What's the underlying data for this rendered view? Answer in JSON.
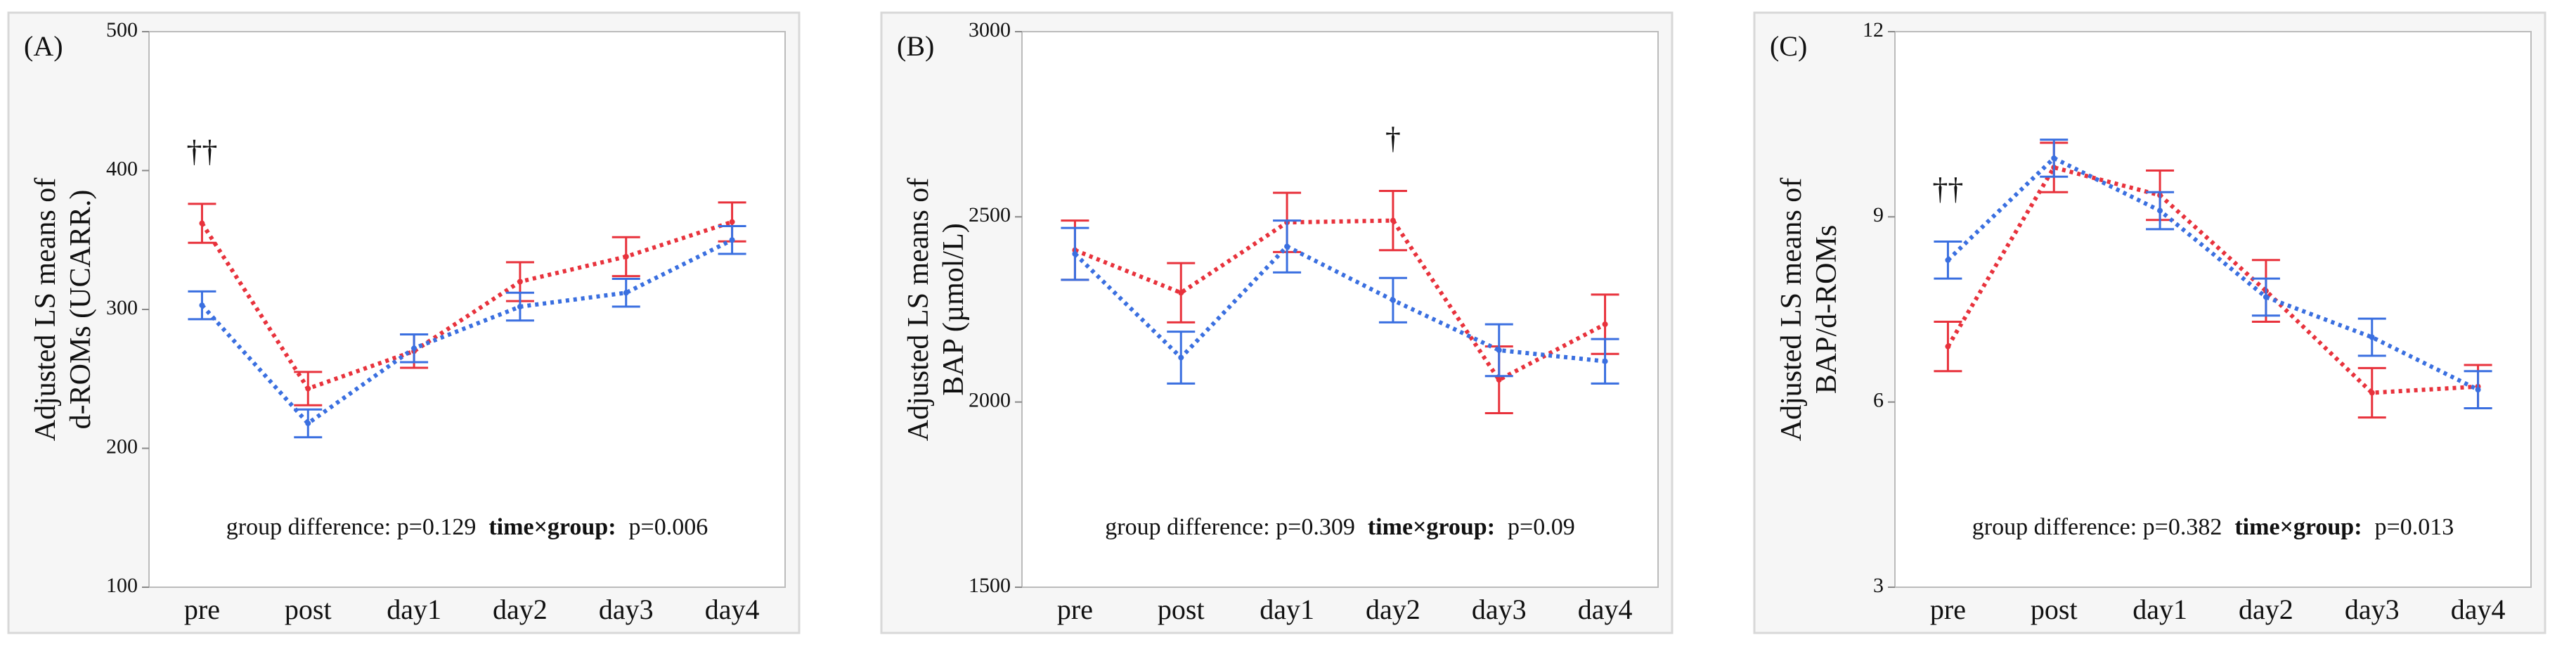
{
  "chart_data": [
    {
      "type": "line",
      "panel_label": "(A)",
      "ylabel": [
        "Adjusted LS means of",
        "d-ROMs (UCARR.)"
      ],
      "categories": [
        "pre",
        "post",
        "day1",
        "day2",
        "day3",
        "day4"
      ],
      "series": [
        {
          "color": "#e8323c",
          "values": [
            362,
            243,
            270,
            320,
            338,
            363
          ],
          "errors": [
            14,
            12,
            12,
            14,
            14,
            14
          ]
        },
        {
          "color": "#3a6fe0",
          "values": [
            303,
            218,
            272,
            302,
            312,
            350
          ],
          "errors": [
            10,
            10,
            10,
            10,
            10,
            10
          ]
        }
      ],
      "ylim": [
        100,
        500
      ],
      "yticks": [
        100,
        200,
        300,
        400,
        500
      ],
      "annotations": [
        {
          "text": "††",
          "category": "pre"
        }
      ],
      "stats": [
        "group difference: p=0.129",
        "time×group:",
        "p=0.006"
      ]
    },
    {
      "type": "line",
      "panel_label": "(B)",
      "ylabel": [
        "Adjusted LS means of",
        "BAP (µmol/L)"
      ],
      "categories": [
        "pre",
        "post",
        "day1",
        "day2",
        "day3",
        "day4"
      ],
      "series": [
        {
          "color": "#e8323c",
          "values": [
            2410,
            2295,
            2485,
            2490,
            2060,
            2210
          ],
          "errors": [
            80,
            80,
            80,
            80,
            90,
            80
          ]
        },
        {
          "color": "#3a6fe0",
          "values": [
            2400,
            2120,
            2420,
            2275,
            2140,
            2110
          ],
          "errors": [
            70,
            70,
            70,
            60,
            70,
            60
          ]
        }
      ],
      "ylim": [
        1500,
        3000
      ],
      "yticks": [
        1500,
        2000,
        2500,
        3000
      ],
      "annotations": [
        {
          "text": "†",
          "category": "day2"
        }
      ],
      "stats": [
        "group difference: p=0.309",
        "time×group:",
        "p=0.09"
      ]
    },
    {
      "type": "line",
      "panel_label": "(C)",
      "ylabel": [
        "Adjusted LS means of",
        "BAP/d-ROMs"
      ],
      "categories": [
        "pre",
        "post",
        "day1",
        "day2",
        "day3",
        "day4"
      ],
      "series": [
        {
          "color": "#e8323c",
          "values": [
            6.9,
            9.8,
            9.35,
            7.8,
            6.15,
            6.25
          ],
          "errors": [
            0.4,
            0.4,
            0.4,
            0.5,
            0.4,
            0.35
          ]
        },
        {
          "color": "#3a6fe0",
          "values": [
            8.3,
            9.95,
            9.1,
            7.7,
            7.05,
            6.2
          ],
          "errors": [
            0.3,
            0.3,
            0.3,
            0.3,
            0.3,
            0.3
          ]
        }
      ],
      "ylim": [
        3,
        12
      ],
      "yticks": [
        3,
        6,
        9,
        12
      ],
      "annotations": [
        {
          "text": "††",
          "category": "pre"
        }
      ],
      "stats": [
        "group difference: p=0.382",
        "time×group:",
        "p=0.013"
      ]
    }
  ]
}
